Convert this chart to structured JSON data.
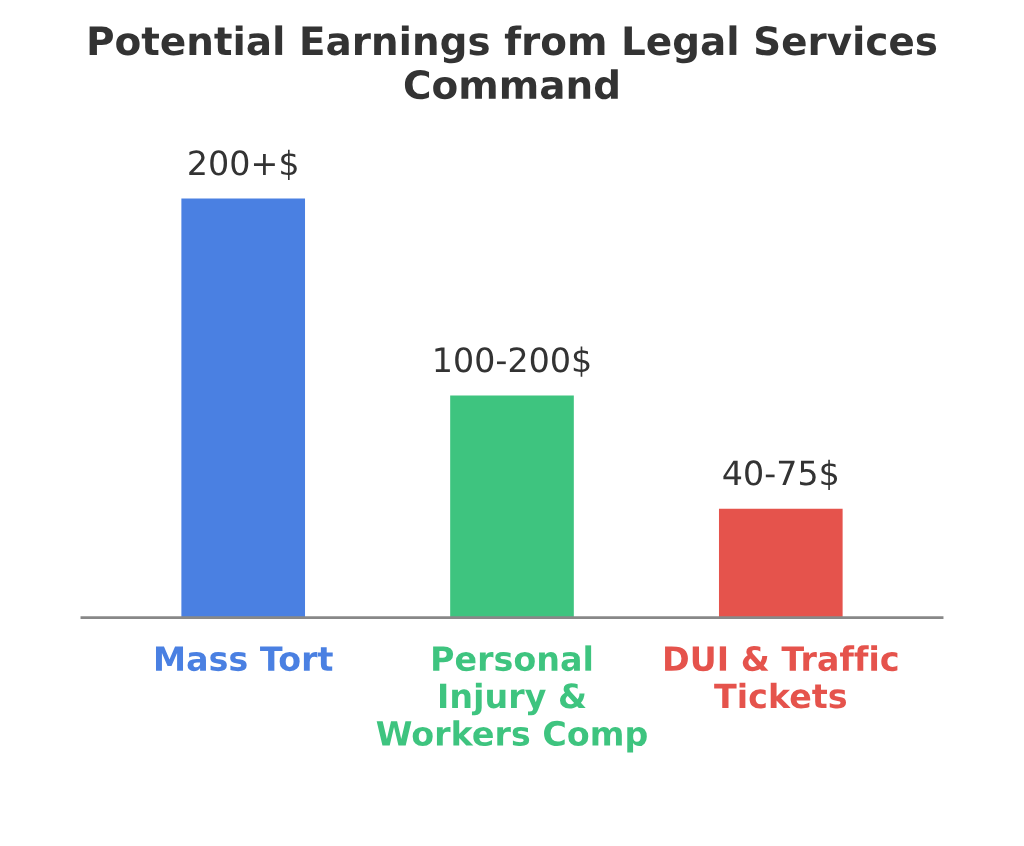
{
  "chart_data": {
    "type": "bar",
    "title": "Potential Earnings from Legal Services Command",
    "categories": [
      "Mass Tort",
      "Personal Injury & Workers Comp",
      "DUI & Traffic Tickets"
    ],
    "values": [
      200,
      106,
      52
    ],
    "colors": [
      "#4a80e2",
      "#3ec47f",
      "#e5534c"
    ],
    "value_labels": [
      "200+$",
      "100-200$",
      "40-75$"
    ]
  }
}
